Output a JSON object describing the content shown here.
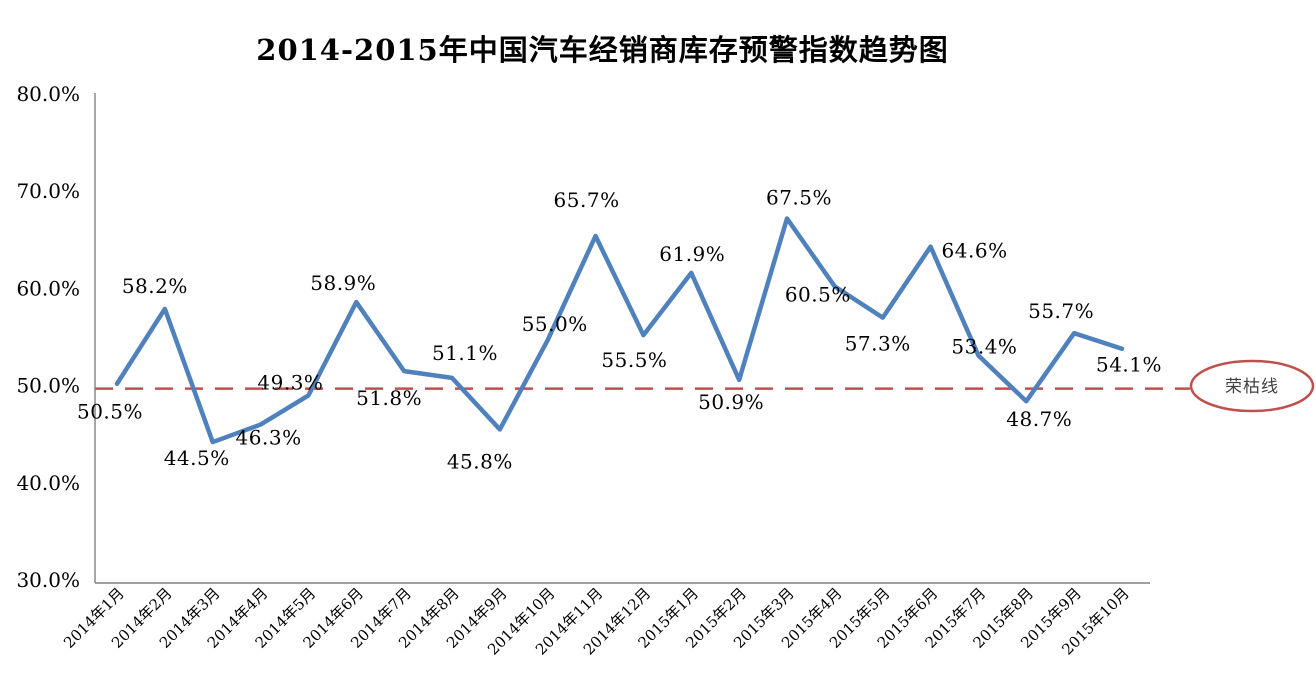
{
  "chart_data": {
    "type": "line",
    "title": "2014-2015年中国汽车经销商库存预警指数趋势图",
    "categories": [
      "2014年1月",
      "2014年2月",
      "2014年3月",
      "2014年4月",
      "2014年5月",
      "2014年6月",
      "2014年7月",
      "2014年8月",
      "2014年9月",
      "2014年10月",
      "2014年11月",
      "2014年12月",
      "2015年1月",
      "2015年2月",
      "2015年3月",
      "2015年4月",
      "2015年5月",
      "2015年6月",
      "2015年7月",
      "2015年8月",
      "2015年9月",
      "2015年10月"
    ],
    "values": [
      50.5,
      58.2,
      44.5,
      46.3,
      49.3,
      58.9,
      51.8,
      51.1,
      45.8,
      55.0,
      65.7,
      55.5,
      61.9,
      50.9,
      67.5,
      60.5,
      57.3,
      64.6,
      53.4,
      48.7,
      55.7,
      54.1
    ],
    "data_labels": [
      "50.5%",
      "58.2%",
      "44.5%",
      "46.3%",
      "49.3%",
      "58.9%",
      "51.8%",
      "51.1%",
      "45.8%",
      "55.0%",
      "65.7%",
      "55.5%",
      "61.9%",
      "50.9%",
      "67.5%",
      "60.5%",
      "57.3%",
      "64.6%",
      "53.4%",
      "48.7%",
      "55.7%",
      "54.1%"
    ],
    "xlabel": "",
    "ylabel": "",
    "ylim": [
      30,
      80
    ],
    "y_ticks": [
      {
        "label": "80.0%",
        "value": 80
      },
      {
        "label": "70.0%",
        "value": 70
      },
      {
        "label": "60.0%",
        "value": 60
      },
      {
        "label": "50.0%",
        "value": 50
      },
      {
        "label": "40.0%",
        "value": 40
      },
      {
        "label": "30.0%",
        "value": 30
      }
    ],
    "grid": false,
    "legend": "none",
    "reference_line": {
      "value": 50.0,
      "label": "荣枯线",
      "style": "dashed"
    },
    "colors": {
      "line": "#4F81BD",
      "reference": "#C0504D",
      "text": "#000000",
      "axis": "#808080",
      "annotation_fill": "#FFFFFF",
      "annotation_text": "#404040"
    }
  }
}
